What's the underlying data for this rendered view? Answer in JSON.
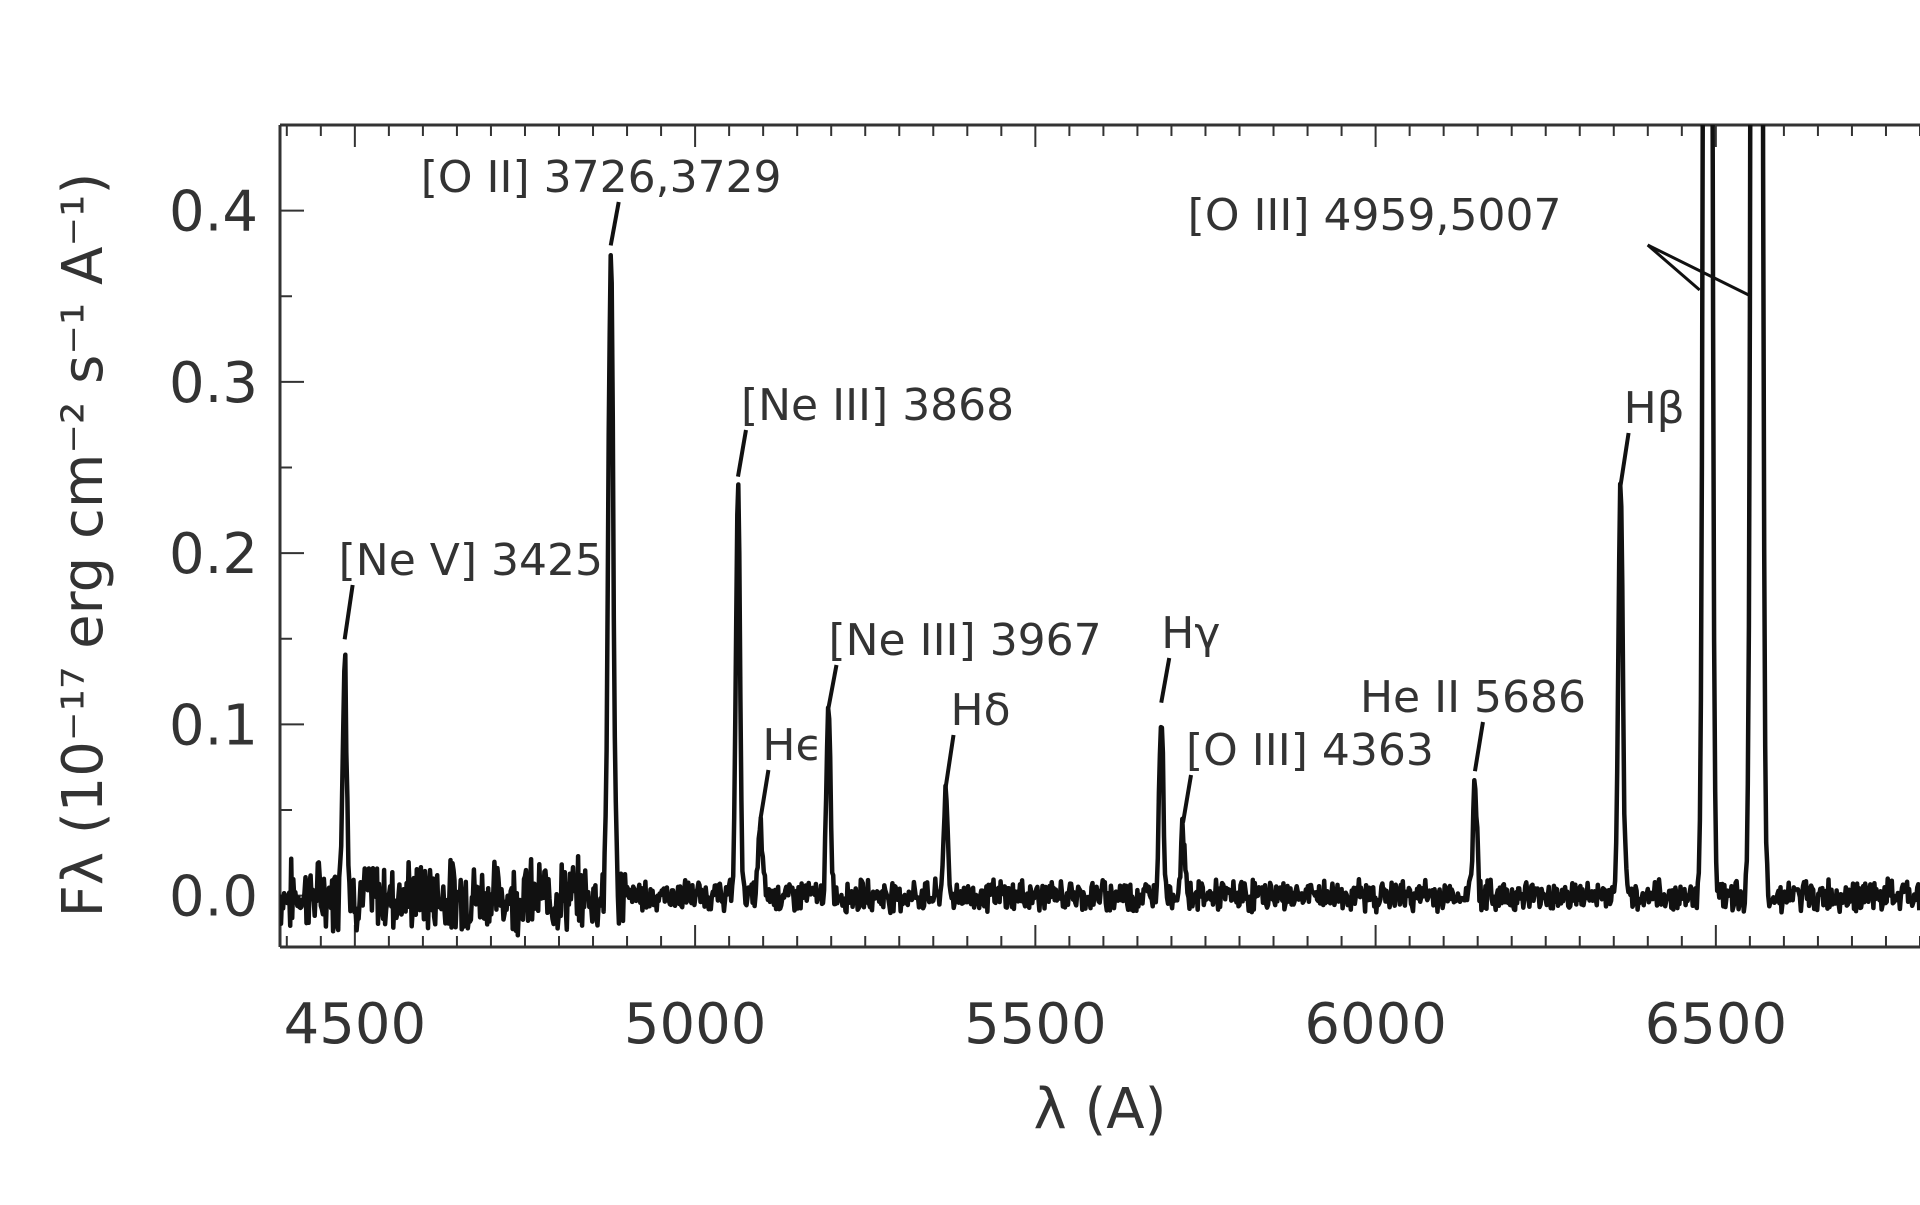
{
  "chart_data": {
    "type": "line",
    "xlabel": "λ (A)",
    "ylabel": "Fλ (10⁻¹⁷ erg cm⁻² s⁻¹ A⁻¹)",
    "xlim": [
      4390,
      6800
    ],
    "ylim": [
      -0.03,
      0.45
    ],
    "x_ticks": [
      4500,
      5000,
      5500,
      6000,
      6500
    ],
    "x_tick_labels": [
      "4500",
      "5000",
      "5500",
      "6000",
      "6500"
    ],
    "y_ticks": [
      0.0,
      0.1,
      0.2,
      0.3,
      0.4
    ],
    "y_tick_labels": [
      "0.0",
      "0.1",
      "0.2",
      "0.3",
      "0.4"
    ],
    "grid": false,
    "series_color": "#111111",
    "axis_color": "#333333",
    "continuum": 0.0,
    "lines": [
      {
        "label": "[Ne V] 3425",
        "center": 4485,
        "peak": 0.145,
        "sigma": 3.0
      },
      {
        "label": "[O II] 3726,3729",
        "center": 4876,
        "peak": 0.375,
        "sigma": 3.6
      },
      {
        "label": "[Ne III] 3868",
        "center": 5063,
        "peak": 0.24,
        "sigma": 3.0
      },
      {
        "label": "Hϵ",
        "center": 5096,
        "peak": 0.04,
        "sigma": 3.0
      },
      {
        "label": "[Ne III] 3967",
        "center": 5196,
        "peak": 0.105,
        "sigma": 3.0
      },
      {
        "label": "Hδ",
        "center": 5368,
        "peak": 0.058,
        "sigma": 3.0
      },
      {
        "label": "Hγ",
        "center": 5685,
        "peak": 0.108,
        "sigma": 3.0
      },
      {
        "label": "[O III] 4363",
        "center": 5717,
        "peak": 0.038,
        "sigma": 3.0
      },
      {
        "label": "He II 5686",
        "center": 6146,
        "peak": 0.068,
        "sigma": 3.0
      },
      {
        "label": "Hβ",
        "center": 6360,
        "peak": 0.235,
        "sigma": 3.2
      },
      {
        "label": "[O III] 4959,5007",
        "center": 6488,
        "peak": 2.0,
        "sigma": 4.2
      },
      {
        "label": "",
        "center": 6560,
        "peak": 4.0,
        "sigma": 4.5
      }
    ]
  }
}
